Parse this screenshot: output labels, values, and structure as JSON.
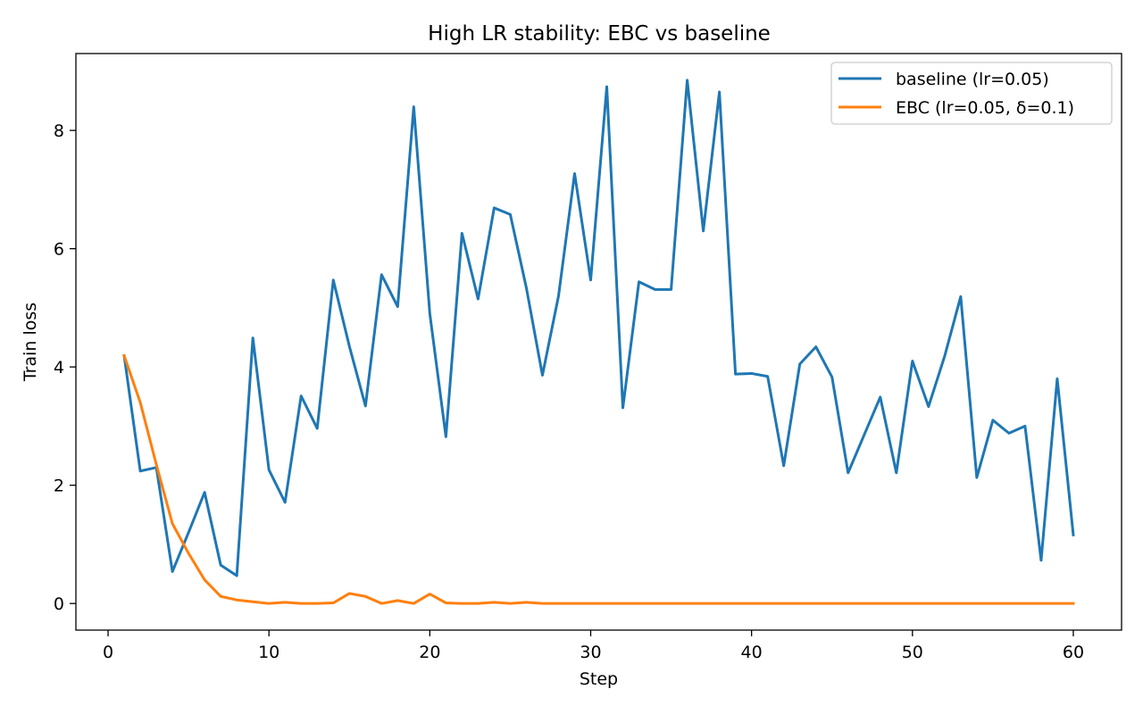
{
  "chart_data": {
    "type": "line",
    "title": "High LR stability: EBC vs baseline",
    "xlabel": "Step",
    "ylabel": "Train loss",
    "xlim": [
      -2,
      63
    ],
    "ylim": [
      -0.45,
      9.3
    ],
    "xticks": [
      0,
      10,
      20,
      30,
      40,
      50,
      60
    ],
    "yticks": [
      0,
      2,
      4,
      6,
      8
    ],
    "grid": false,
    "legend_position": "top-right",
    "x": [
      1,
      2,
      3,
      4,
      5,
      6,
      7,
      8,
      9,
      10,
      11,
      12,
      13,
      14,
      15,
      16,
      17,
      18,
      19,
      20,
      21,
      22,
      23,
      24,
      25,
      26,
      27,
      28,
      29,
      30,
      31,
      32,
      33,
      34,
      35,
      36,
      37,
      38,
      39,
      40,
      41,
      42,
      43,
      44,
      45,
      46,
      47,
      48,
      49,
      50,
      51,
      52,
      53,
      54,
      55,
      56,
      57,
      58,
      59,
      60
    ],
    "series": [
      {
        "name": "baseline (lr=0.05)",
        "color": "#1f77b4",
        "values": [
          4.19,
          2.24,
          2.3,
          0.54,
          1.2,
          1.88,
          0.65,
          0.47,
          4.49,
          2.26,
          1.71,
          3.51,
          2.96,
          5.47,
          4.35,
          3.34,
          5.56,
          5.02,
          8.4,
          4.9,
          2.82,
          6.26,
          5.15,
          6.69,
          6.58,
          5.34,
          3.86,
          5.2,
          7.27,
          5.47,
          8.74,
          3.31,
          5.44,
          5.31,
          5.31,
          8.85,
          6.3,
          8.65,
          3.88,
          3.89,
          3.84,
          2.33,
          4.05,
          4.34,
          3.83,
          2.21,
          2.85,
          3.49,
          2.21,
          4.1,
          3.33,
          4.18,
          5.19,
          2.13,
          3.1,
          2.88,
          3.0,
          0.73,
          3.8,
          1.16
        ]
      },
      {
        "name": "EBC (lr=0.05, δ=0.1)",
        "color": "#ff7f0e",
        "values": [
          4.19,
          3.4,
          2.35,
          1.35,
          0.85,
          0.4,
          0.12,
          0.06,
          0.03,
          0.0,
          0.02,
          0.0,
          0.0,
          0.01,
          0.17,
          0.12,
          0.0,
          0.05,
          0.0,
          0.16,
          0.01,
          0.0,
          0.0,
          0.02,
          0.0,
          0.02,
          0.0,
          0.0,
          0.0,
          0.0,
          0.0,
          0.0,
          0.0,
          0.0,
          0.0,
          0.0,
          0.0,
          0.0,
          0.0,
          0.0,
          0.0,
          0.0,
          0.0,
          0.0,
          0.0,
          0.0,
          0.0,
          0.0,
          0.0,
          0.0,
          0.0,
          0.0,
          0.0,
          0.0,
          0.0,
          0.0,
          0.0,
          0.0,
          0.0,
          0.0
        ]
      }
    ]
  }
}
